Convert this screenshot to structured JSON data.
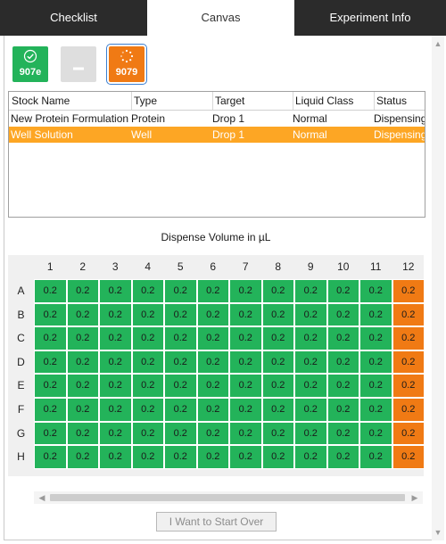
{
  "tabs": [
    {
      "label": "Checklist",
      "active": false
    },
    {
      "label": "Canvas",
      "active": true
    },
    {
      "label": "Experiment Info",
      "active": false
    }
  ],
  "plates": [
    {
      "label": "907e",
      "icon": "check-circle-icon",
      "color": "#23b35a",
      "selected": false
    },
    {
      "label": "",
      "icon": "dash-icon",
      "color": "#dedede",
      "selected": false
    },
    {
      "label": "9079",
      "icon": "spinner-icon",
      "color": "#f07a14",
      "selected": true
    }
  ],
  "stock_table": {
    "columns": [
      "Stock Name",
      "Type",
      "Target",
      "Liquid Class",
      "Status"
    ],
    "rows": [
      {
        "cells": [
          "New Protein Formulation",
          "Protein",
          "Drop 1",
          "Normal",
          "Dispensing"
        ],
        "selected": false
      },
      {
        "cells": [
          "Well Solution",
          "Well",
          "Drop 1",
          "Normal",
          "Dispensing"
        ],
        "selected": true
      }
    ]
  },
  "chart_data": {
    "type": "heatmap",
    "title": "Dispense Volume in µL",
    "columns": [
      "1",
      "2",
      "3",
      "4",
      "5",
      "6",
      "7",
      "8",
      "9",
      "10",
      "11",
      "12"
    ],
    "rows": [
      "A",
      "B",
      "C",
      "D",
      "E",
      "F",
      "G",
      "H"
    ],
    "values": [
      [
        0.2,
        0.2,
        0.2,
        0.2,
        0.2,
        0.2,
        0.2,
        0.2,
        0.2,
        0.2,
        0.2,
        0.2
      ],
      [
        0.2,
        0.2,
        0.2,
        0.2,
        0.2,
        0.2,
        0.2,
        0.2,
        0.2,
        0.2,
        0.2,
        0.2
      ],
      [
        0.2,
        0.2,
        0.2,
        0.2,
        0.2,
        0.2,
        0.2,
        0.2,
        0.2,
        0.2,
        0.2,
        0.2
      ],
      [
        0.2,
        0.2,
        0.2,
        0.2,
        0.2,
        0.2,
        0.2,
        0.2,
        0.2,
        0.2,
        0.2,
        0.2
      ],
      [
        0.2,
        0.2,
        0.2,
        0.2,
        0.2,
        0.2,
        0.2,
        0.2,
        0.2,
        0.2,
        0.2,
        0.2
      ],
      [
        0.2,
        0.2,
        0.2,
        0.2,
        0.2,
        0.2,
        0.2,
        0.2,
        0.2,
        0.2,
        0.2,
        0.2
      ],
      [
        0.2,
        0.2,
        0.2,
        0.2,
        0.2,
        0.2,
        0.2,
        0.2,
        0.2,
        0.2,
        0.2,
        0.2
      ],
      [
        0.2,
        0.2,
        0.2,
        0.2,
        0.2,
        0.2,
        0.2,
        0.2,
        0.2,
        0.2,
        0.2,
        0.2
      ]
    ],
    "column_colors": [
      "#23b35a",
      "#23b35a",
      "#23b35a",
      "#23b35a",
      "#23b35a",
      "#23b35a",
      "#23b35a",
      "#23b35a",
      "#23b35a",
      "#23b35a",
      "#23b35a",
      "#f07a14"
    ]
  },
  "footer": {
    "start_over_label": "I Want to Start Over"
  }
}
